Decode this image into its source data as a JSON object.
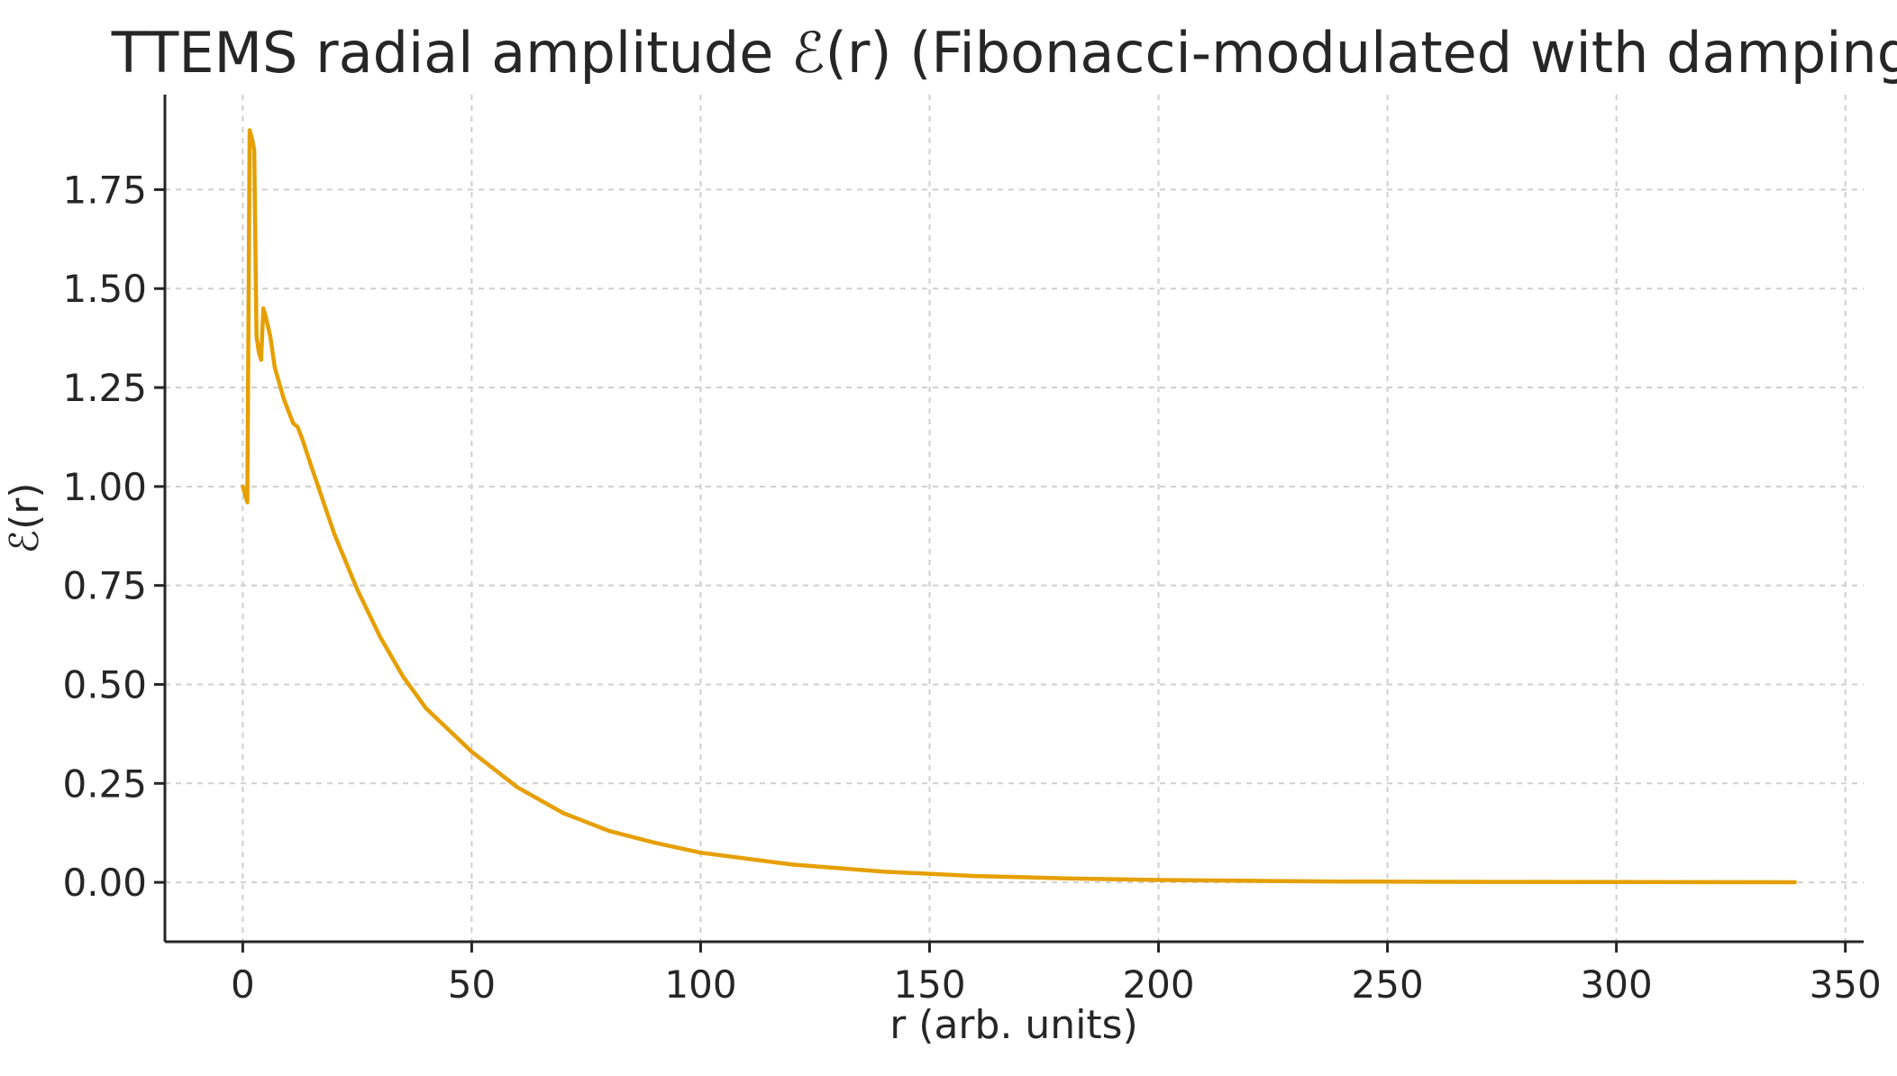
{
  "chart_data": {
    "type": "line",
    "title": "TTEMS radial amplitude ℰ(r) (Fibonacci-modulated with damping)",
    "xlabel": "r (arb. units)",
    "ylabel": "ℰ(r)",
    "xlim": [
      -17,
      354
    ],
    "ylim": [
      -0.15,
      1.99
    ],
    "xticks": [
      0,
      50,
      100,
      150,
      200,
      250,
      300,
      350
    ],
    "xtick_labels": [
      "0",
      "50",
      "100",
      "150",
      "200",
      "250",
      "300",
      "350"
    ],
    "yticks": [
      0.0,
      0.25,
      0.5,
      0.75,
      1.0,
      1.25,
      1.5,
      1.75
    ],
    "ytick_labels": [
      "0.00",
      "0.25",
      "0.50",
      "0.75",
      "1.00",
      "1.25",
      "1.50",
      "1.75"
    ],
    "grid": true,
    "series": [
      {
        "color": "#e69f00",
        "x": [
          0,
          0.5,
          1,
          1.5,
          2,
          2.5,
          3,
          3.5,
          4,
          4.5,
          5,
          6,
          7,
          8,
          9,
          10,
          11,
          12,
          13,
          15,
          20,
          25,
          30,
          35,
          40,
          50,
          60,
          70,
          80,
          90,
          100,
          120,
          140,
          160,
          180,
          200,
          220,
          240,
          260,
          280,
          300,
          320,
          339
        ],
        "y": [
          1.0,
          0.98,
          0.96,
          1.9,
          1.88,
          1.85,
          1.38,
          1.34,
          1.32,
          1.45,
          1.43,
          1.38,
          1.3,
          1.26,
          1.22,
          1.19,
          1.16,
          1.15,
          1.12,
          1.05,
          0.88,
          0.74,
          0.62,
          0.52,
          0.44,
          0.33,
          0.24,
          0.175,
          0.13,
          0.1,
          0.075,
          0.045,
          0.027,
          0.016,
          0.01,
          0.006,
          0.004,
          0.002,
          0.0015,
          0.001,
          0.0007,
          0.0005,
          0.0003
        ]
      }
    ]
  }
}
